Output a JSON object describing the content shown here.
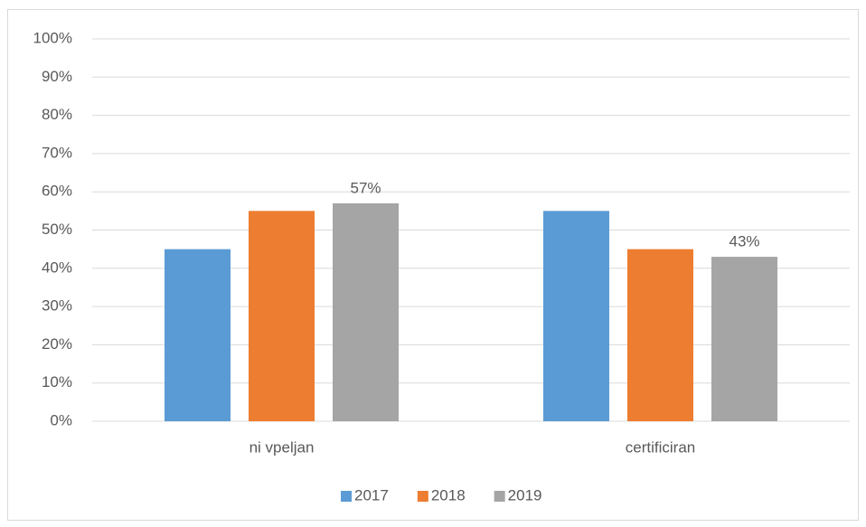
{
  "chart_data": {
    "type": "bar",
    "categories": [
      "ni vpeljan",
      "certificiran"
    ],
    "series": [
      {
        "name": "2017",
        "color": "#5b9bd5",
        "values": [
          45,
          55
        ]
      },
      {
        "name": "2018",
        "color": "#ed7d31",
        "values": [
          55,
          45
        ]
      },
      {
        "name": "2019",
        "color": "#a5a5a5",
        "values": [
          57,
          43
        ],
        "value_labels": [
          "57%",
          "43%"
        ]
      }
    ],
    "ylim": [
      0,
      100
    ],
    "yticks": [
      {
        "value": 0,
        "label": "0%"
      },
      {
        "value": 10,
        "label": "10%"
      },
      {
        "value": 20,
        "label": "20%"
      },
      {
        "value": 30,
        "label": "30%"
      },
      {
        "value": 40,
        "label": "40%"
      },
      {
        "value": 50,
        "label": "50%"
      },
      {
        "value": 60,
        "label": "60%"
      },
      {
        "value": 70,
        "label": "70%"
      },
      {
        "value": 80,
        "label": "80%"
      },
      {
        "value": 90,
        "label": "90%"
      },
      {
        "value": 100,
        "label": "100%"
      }
    ],
    "grid": true,
    "legend": "bottom"
  }
}
